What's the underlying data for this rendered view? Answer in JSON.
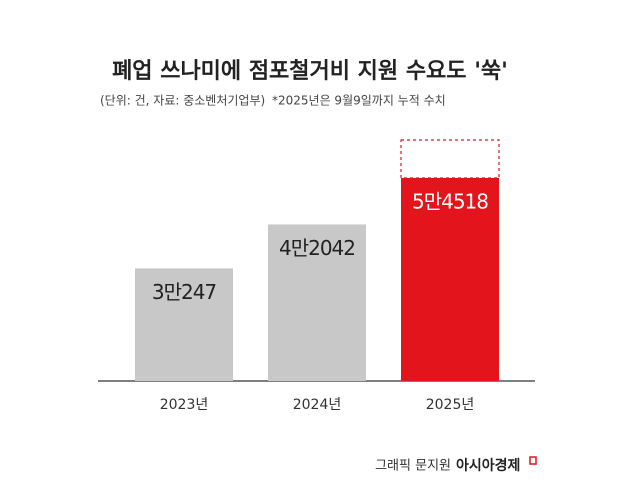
{
  "chart_data": {
    "type": "bar",
    "title": "폐업 쓰나미에 점포철거비 지원 수요도 '쑥'",
    "subtitle": "(단위: 건, 자료: 중소벤처기업부)",
    "note": "*2025년은 9월9일까지 누적 수치",
    "categories": [
      "2023년",
      "2024년",
      "2025년"
    ],
    "values": [
      30247,
      42042,
      54518
    ],
    "value_labels": [
      "3만247",
      "4만2042",
      "5만4518"
    ],
    "colors": [
      "#c8c8c8",
      "#c8c8c8",
      "#e3141b"
    ]
  },
  "credit": {
    "graphic": "그래픽 문지원",
    "source": "아시아경제"
  }
}
